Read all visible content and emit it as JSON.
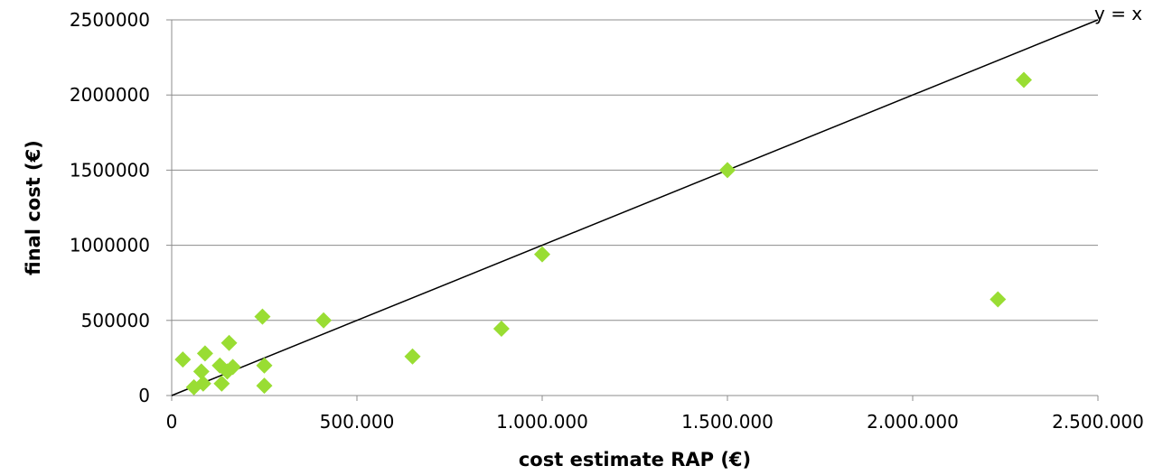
{
  "chart_data": {
    "type": "scatter",
    "xlabel": "cost estimate RAP (€)",
    "ylabel": "final cost (€)",
    "xlim": [
      0,
      2500000
    ],
    "ylim": [
      0,
      2500000
    ],
    "x_ticks": [
      "0",
      "500.000",
      "1.000.000",
      "1.500.000",
      "2.000.000",
      "2.500.000"
    ],
    "x_tick_values": [
      0,
      500000,
      1000000,
      1500000,
      2000000,
      2500000
    ],
    "y_ticks": [
      "0",
      "500000",
      "1000000",
      "1500000",
      "2000000",
      "2500000"
    ],
    "y_tick_values": [
      0,
      500000,
      1000000,
      1500000,
      2000000,
      2500000
    ],
    "grid": "horizontal",
    "reference_line": {
      "label": "y = x",
      "from": [
        0,
        0
      ],
      "to": [
        2500000,
        2500000
      ],
      "color": "#000000"
    },
    "marker_color": "#99dd33",
    "points": [
      [
        30000,
        240000
      ],
      [
        60000,
        55000
      ],
      [
        80000,
        160000
      ],
      [
        85000,
        80000
      ],
      [
        90000,
        280000
      ],
      [
        130000,
        200000
      ],
      [
        135000,
        80000
      ],
      [
        150000,
        160000
      ],
      [
        155000,
        350000
      ],
      [
        165000,
        190000
      ],
      [
        245000,
        525000
      ],
      [
        250000,
        200000
      ],
      [
        250000,
        65000
      ],
      [
        410000,
        500000
      ],
      [
        650000,
        260000
      ],
      [
        890000,
        445000
      ],
      [
        1000000,
        940000
      ],
      [
        1500000,
        1500000
      ],
      [
        2230000,
        640000
      ],
      [
        2300000,
        2100000
      ]
    ]
  }
}
